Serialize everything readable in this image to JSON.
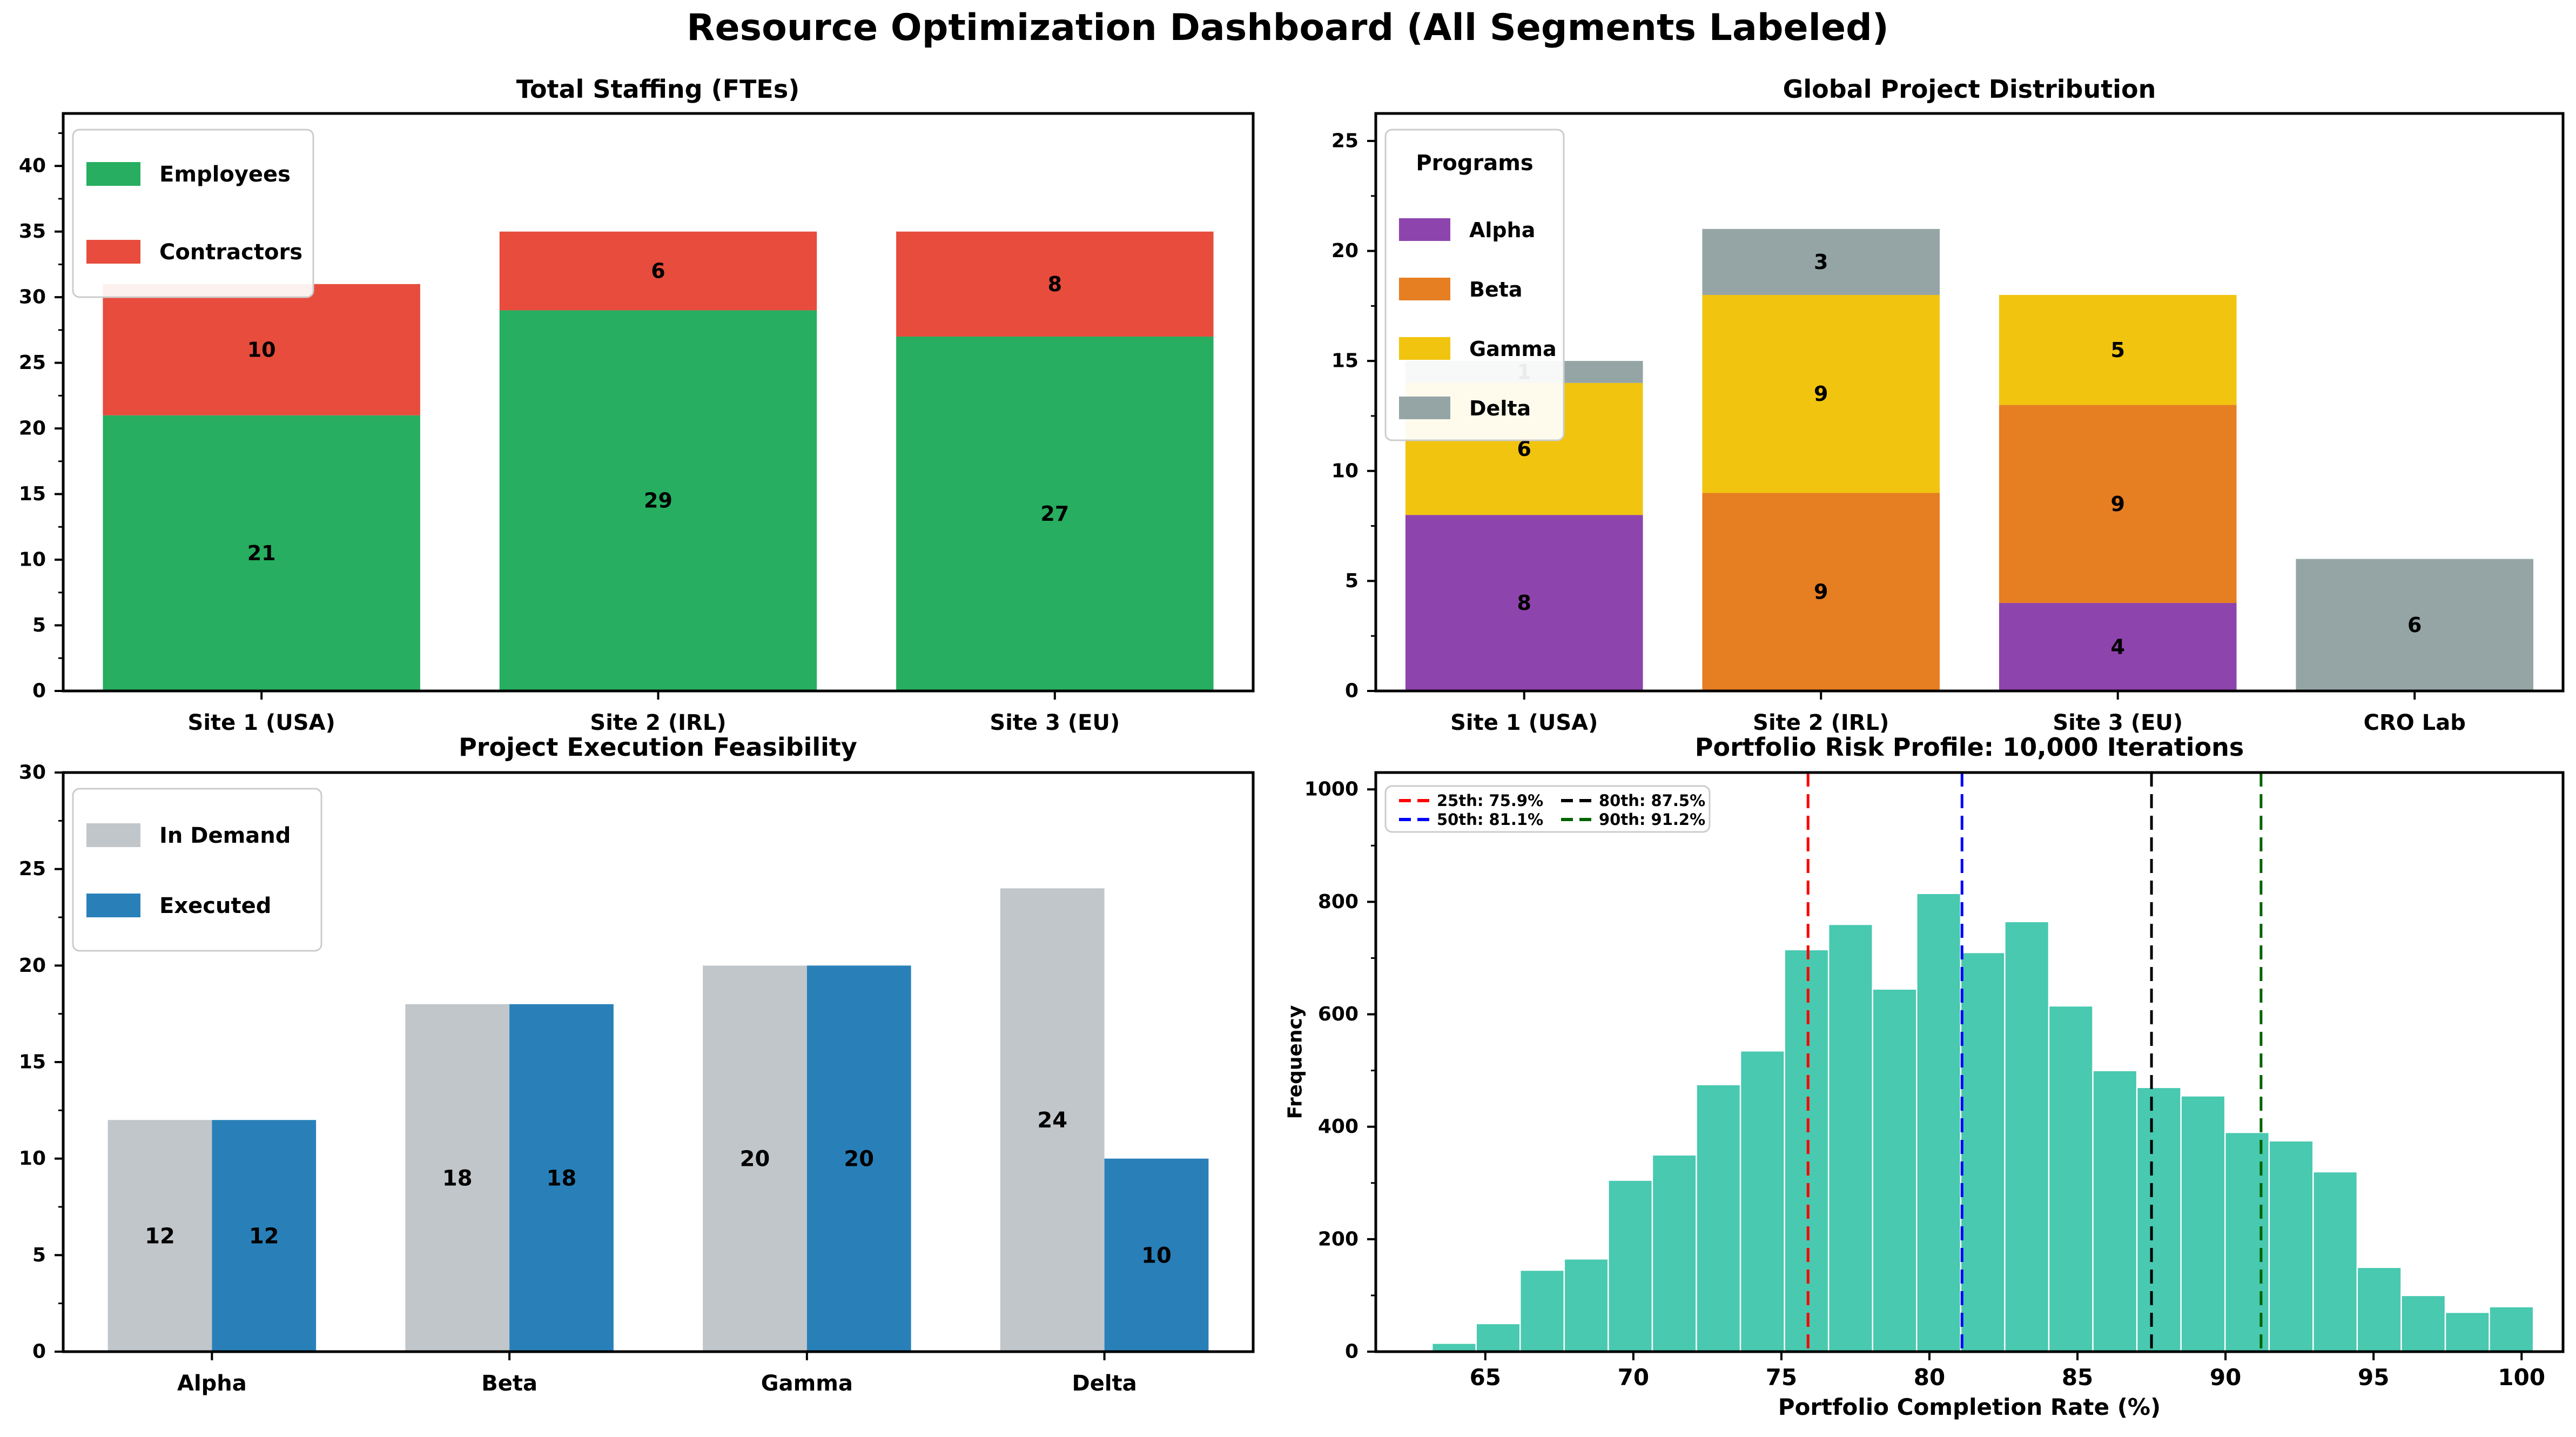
{
  "suptitle": "Resource Optimization Dashboard (All Segments Labeled)",
  "chart_data": [
    {
      "id": "staffing",
      "type": "bar",
      "stacked": true,
      "title": "Total Staffing (FTEs)",
      "categories": [
        "Site 1 (USA)",
        "Site 2 (IRL)",
        "Site 3 (EU)"
      ],
      "series": [
        {
          "name": "Employees",
          "color": "#27ae60",
          "values": [
            21,
            29,
            27
          ]
        },
        {
          "name": "Contractors",
          "color": "#e74c3c",
          "values": [
            10,
            6,
            8
          ]
        }
      ],
      "ylim": [
        0,
        44
      ],
      "yticks": [
        0,
        5,
        10,
        15,
        20,
        25,
        30,
        35,
        40
      ],
      "legend_position": "upper left"
    },
    {
      "id": "programs",
      "type": "bar",
      "stacked": true,
      "title": "Global Project Distribution",
      "legend_title": "Programs",
      "categories": [
        "Site 1 (USA)",
        "Site 2 (IRL)",
        "Site 3 (EU)",
        "CRO Lab"
      ],
      "series": [
        {
          "name": "Alpha",
          "color": "#8e44ad",
          "values": [
            8,
            0,
            4,
            0
          ]
        },
        {
          "name": "Beta",
          "color": "#e67e22",
          "values": [
            0,
            9,
            9,
            0
          ]
        },
        {
          "name": "Gamma",
          "color": "#f1c40f",
          "values": [
            6,
            9,
            5,
            0
          ]
        },
        {
          "name": "Delta",
          "color": "#95a5a6",
          "values": [
            1,
            3,
            0,
            6
          ]
        }
      ],
      "ylim": [
        0,
        26.25
      ],
      "yticks": [
        0,
        5,
        10,
        15,
        20,
        25
      ],
      "legend_position": "upper left"
    },
    {
      "id": "feasibility",
      "type": "grouped_bar",
      "title": "Project Execution Feasibility",
      "categories": [
        "Alpha",
        "Beta",
        "Gamma",
        "Delta"
      ],
      "series": [
        {
          "name": "In Demand",
          "color": "#c1c6ca",
          "values": [
            12,
            18,
            20,
            24
          ]
        },
        {
          "name": "Executed",
          "color": "#2980b9",
          "values": [
            12,
            18,
            20,
            10
          ]
        }
      ],
      "ylim": [
        0,
        30
      ],
      "yticks": [
        0,
        5,
        10,
        15,
        20,
        25,
        30
      ],
      "legend_position": "upper left"
    },
    {
      "id": "risk",
      "type": "histogram",
      "title": "Portfolio Risk Profile: 10,000 Iterations",
      "xlabel": "Portfolio Completion Rate (%)",
      "ylabel": "Frequency",
      "bar_color": "#48c9b0",
      "bar_edge_color": "#ffffff",
      "bin_start": 63.2,
      "bin_width": 1.488,
      "counts": [
        15,
        50,
        145,
        165,
        305,
        350,
        475,
        535,
        715,
        760,
        645,
        815,
        710,
        765,
        615,
        500,
        470,
        455,
        390,
        375,
        320,
        150,
        100,
        70,
        80
      ],
      "xlim": [
        61.3,
        101.4
      ],
      "ylim": [
        0,
        1030
      ],
      "xticks": [
        65,
        70,
        75,
        80,
        85,
        90,
        95,
        100
      ],
      "yticks": [
        0,
        200,
        400,
        600,
        800,
        1000
      ],
      "percentiles": [
        {
          "label": "25th: 75.9%",
          "value": 75.9,
          "color": "#ff0000"
        },
        {
          "label": "50th: 81.1%",
          "value": 81.1,
          "color": "#0000ff"
        },
        {
          "label": "80th: 87.5%",
          "value": 87.5,
          "color": "#000000"
        },
        {
          "label": "90th: 91.2%",
          "value": 91.2,
          "color": "#006400"
        }
      ]
    }
  ]
}
